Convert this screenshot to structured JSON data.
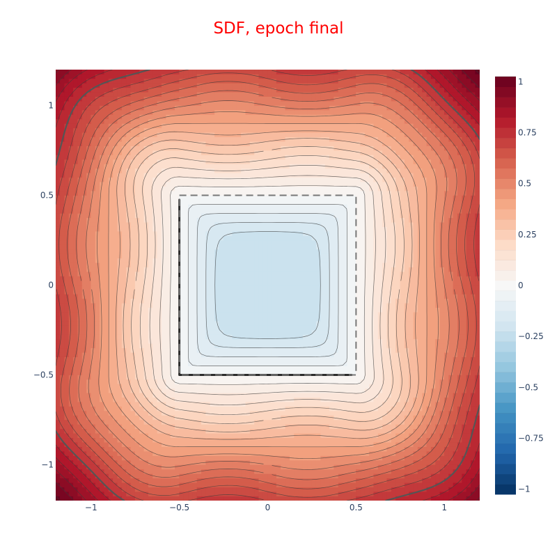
{
  "chart_data": {
    "type": "contour",
    "title": "SDF, epoch final",
    "title_color": "#ff0000",
    "xlabel": "",
    "ylabel": "",
    "xlim": [
      -1.2,
      1.2
    ],
    "ylim": [
      -1.2,
      1.2
    ],
    "x_ticks": [
      -1,
      -0.5,
      0,
      0.5,
      1
    ],
    "x_tick_labels": [
      "−1",
      "−0.5",
      "0",
      "0.5",
      "1"
    ],
    "y_ticks": [
      1,
      0.5,
      0,
      -0.5,
      -1
    ],
    "y_tick_labels": [
      "1",
      "0.5",
      "0",
      "−0.5",
      "−1"
    ],
    "z_range": [
      -1.025,
      1.025
    ],
    "contour_step": 0.05,
    "colorscale": "RdBu_r",
    "colorbar": {
      "ticks": [
        1,
        0.75,
        0.5,
        0.25,
        0,
        -0.25,
        -0.5,
        -0.75,
        -1
      ],
      "tick_labels": [
        "1",
        "0.75",
        "0.5",
        "0.25",
        "0",
        "−0.25",
        "−0.5",
        "−0.75",
        "−1"
      ]
    },
    "target_shape": {
      "type": "square",
      "x_range": [
        -0.5,
        0.5
      ],
      "y_range": [
        -0.5,
        0.5
      ],
      "line": "dashed",
      "color": "#777777"
    },
    "zero_level": {
      "level": 0,
      "color": "#2b2b2b"
    },
    "highlight_level": {
      "level": 0.75,
      "color": "#555555"
    },
    "min_value": -0.25,
    "grid": false,
    "legend": "none"
  }
}
